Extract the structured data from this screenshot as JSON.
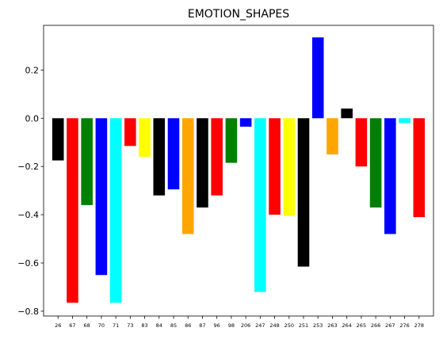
{
  "chart_data": {
    "type": "bar",
    "title": "EMOTION_SHAPES",
    "xlabel": "",
    "ylabel": "",
    "ylim": [
      -0.82,
      0.385
    ],
    "yticks": [
      -0.8,
      -0.6,
      -0.4,
      -0.2,
      0.0,
      0.2
    ],
    "ytick_labels": [
      "−0.8",
      "−0.6",
      "−0.4",
      "−0.2",
      "0.0",
      "0.2"
    ],
    "grid": false,
    "legend": "none",
    "categories": [
      "26",
      "67",
      "68",
      "70",
      "71",
      "73",
      "83",
      "84",
      "85",
      "86",
      "87",
      "96",
      "98",
      "206",
      "247",
      "248",
      "250",
      "251",
      "253",
      "263",
      "264",
      "265",
      "266",
      "267",
      "276",
      "278"
    ],
    "values": [
      -0.175,
      -0.765,
      -0.36,
      -0.65,
      -0.765,
      -0.115,
      -0.16,
      -0.32,
      -0.295,
      -0.48,
      -0.37,
      -0.32,
      -0.185,
      -0.035,
      -0.72,
      -0.4,
      -0.405,
      -0.615,
      0.335,
      -0.15,
      0.04,
      -0.2,
      -0.37,
      -0.48,
      -0.02,
      -0.41
    ],
    "colors": [
      "#000000",
      "#ff0000",
      "#008000",
      "#0000ff",
      "#00ffff",
      "#ff0000",
      "#ffff00",
      "#000000",
      "#0000ff",
      "#ffa500",
      "#000000",
      "#ff0000",
      "#008000",
      "#0000ff",
      "#00ffff",
      "#ff0000",
      "#ffff00",
      "#000000",
      "#0000ff",
      "#ffa500",
      "#000000",
      "#ff0000",
      "#008000",
      "#0000ff",
      "#00ffff",
      "#ff0000"
    ]
  }
}
